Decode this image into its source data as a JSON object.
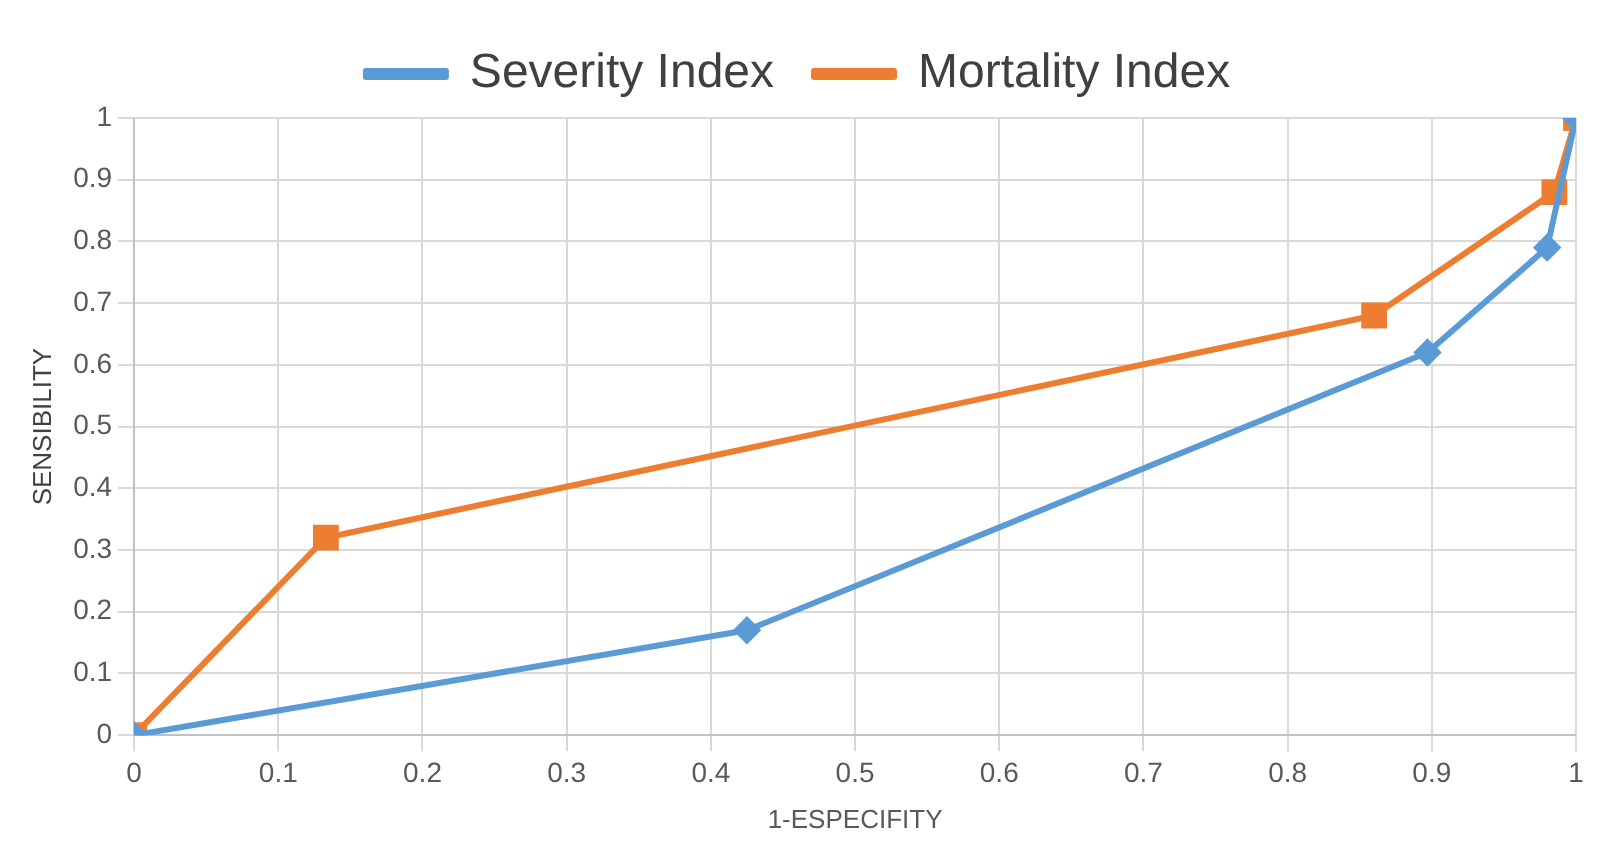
{
  "chart_data": {
    "type": "line",
    "xlabel": "1-ESPECIFITY",
    "ylabel": "SENSIBILITY",
    "legend": "top",
    "grid": true,
    "xlim": [
      0,
      1
    ],
    "xticks": [
      0,
      0.1,
      0.2,
      0.3,
      0.4,
      0.5,
      0.6,
      0.7,
      0.8,
      0.9,
      1
    ],
    "ylim": [
      0,
      1
    ],
    "yticks": [
      0,
      0.1,
      0.2,
      0.3,
      0.4,
      0.5,
      0.6,
      0.7,
      0.8,
      0.9,
      1
    ],
    "series": [
      {
        "name": "Severity Index",
        "color": "#5b9bd5",
        "marker": "diamond",
        "x": [
          0,
          0.425,
          0.897,
          0.98,
          1
        ],
        "values": [
          0,
          0.17,
          0.62,
          0.79,
          1
        ]
      },
      {
        "name": "Mortality Index",
        "color": "#ed7d31",
        "marker": "square",
        "x": [
          0,
          0.133,
          0.86,
          0.985,
          1
        ],
        "values": [
          0,
          0.32,
          0.68,
          0.88,
          1
        ]
      }
    ]
  }
}
